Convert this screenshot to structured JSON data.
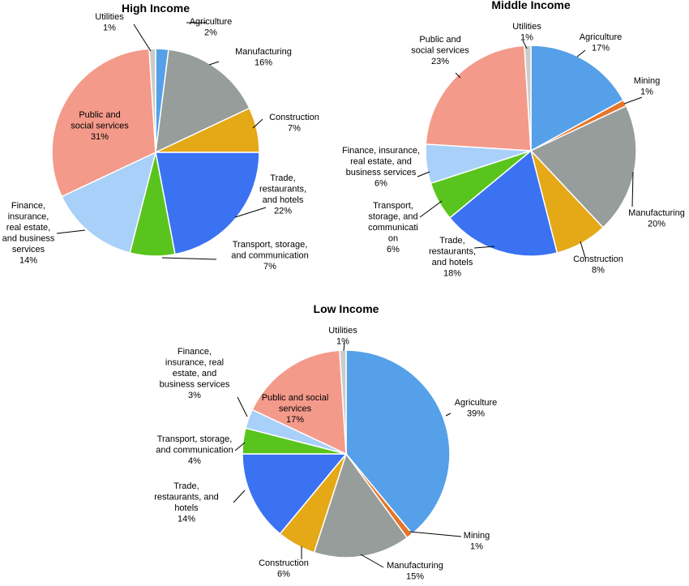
{
  "colors": {
    "agriculture": "#55a0e8",
    "mining": "#e6752a",
    "manufacturing": "#969d9a",
    "construction": "#e5a816",
    "trade": "#3a72f2",
    "transport": "#5ac41e",
    "finance": "#a8d0f8",
    "public": "#f49a8a",
    "utilities": "#cccccc"
  },
  "chart_data": [
    {
      "type": "pie",
      "title": "High Income",
      "slices": [
        {
          "key": "agriculture",
          "label": [
            "Agriculture",
            "2%"
          ],
          "value": 2
        },
        {
          "key": "manufacturing",
          "label": [
            "Manufacturing",
            "16%"
          ],
          "value": 16
        },
        {
          "key": "construction",
          "label": [
            "Construction",
            "7%"
          ],
          "value": 7
        },
        {
          "key": "trade",
          "label": [
            "Trade,",
            "restaurants,",
            "and hotels",
            "22%"
          ],
          "value": 22
        },
        {
          "key": "transport",
          "label": [
            "Transport, storage,",
            "and communication",
            "7%"
          ],
          "value": 7
        },
        {
          "key": "finance",
          "label": [
            "Finance,",
            "insurance,",
            "real estate,",
            "and business",
            "services",
            "14%"
          ],
          "value": 14
        },
        {
          "key": "public",
          "label": [
            "Public and",
            "social services",
            "31%"
          ],
          "value": 31
        },
        {
          "key": "utilities",
          "label": [
            "Utilities",
            "1%"
          ],
          "value": 1
        }
      ]
    },
    {
      "type": "pie",
      "title": "Middle Income",
      "slices": [
        {
          "key": "agriculture",
          "label": [
            "Agriculture",
            "17%"
          ],
          "value": 17
        },
        {
          "key": "mining",
          "label": [
            "Mining",
            "1%"
          ],
          "value": 1
        },
        {
          "key": "manufacturing",
          "label": [
            "Manufacturing",
            "20%"
          ],
          "value": 20
        },
        {
          "key": "construction",
          "label": [
            "Construction",
            "8%"
          ],
          "value": 8
        },
        {
          "key": "trade",
          "label": [
            "Trade,",
            "restaurants,",
            "and hotels",
            "18%"
          ],
          "value": 18
        },
        {
          "key": "transport",
          "label": [
            "Transport,",
            "storage, and",
            "communicati",
            "on",
            "6%"
          ],
          "value": 6
        },
        {
          "key": "finance",
          "label": [
            "Finance, insurance,",
            "real estate, and",
            "business services",
            "6%"
          ],
          "value": 6
        },
        {
          "key": "public",
          "label": [
            "Public and",
            "social services",
            "23%"
          ],
          "value": 23
        },
        {
          "key": "utilities",
          "label": [
            "Utilities",
            "1%"
          ],
          "value": 1
        }
      ]
    },
    {
      "type": "pie",
      "title": "Low Income",
      "slices": [
        {
          "key": "agriculture",
          "label": [
            "Agriculture",
            "39%"
          ],
          "value": 39
        },
        {
          "key": "mining",
          "label": [
            "Mining",
            "1%"
          ],
          "value": 1
        },
        {
          "key": "manufacturing",
          "label": [
            "Manufacturing",
            "15%"
          ],
          "value": 15
        },
        {
          "key": "construction",
          "label": [
            "Construction",
            "6%"
          ],
          "value": 6
        },
        {
          "key": "trade",
          "label": [
            "Trade,",
            "restaurants, and",
            "hotels",
            "14%"
          ],
          "value": 14
        },
        {
          "key": "transport",
          "label": [
            "Transport, storage,",
            "and communication",
            "4%"
          ],
          "value": 4
        },
        {
          "key": "finance",
          "label": [
            "Finance,",
            "insurance, real",
            "estate, and",
            "business services",
            "3%"
          ],
          "value": 3
        },
        {
          "key": "public",
          "label": [
            "Public and social",
            "services",
            "17%"
          ],
          "value": 17
        },
        {
          "key": "utilities",
          "label": [
            "Utilities",
            "1%"
          ],
          "value": 1
        }
      ]
    }
  ]
}
